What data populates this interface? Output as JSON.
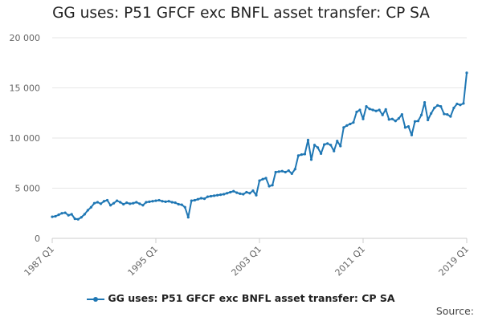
{
  "page": {
    "title": "GG uses: P51 GFCF exc BNFL asset transfer: CP SA",
    "source_label": "Source:"
  },
  "colors": {
    "series": "#1f77b4",
    "grid": "#e6e6e6",
    "axis": "#cccccc"
  },
  "chart_data": {
    "type": "line",
    "title": "GG uses: P51 GFCF exc BNFL asset transfer: CP SA",
    "xlabel": "",
    "ylabel": "",
    "ylim": [
      0,
      20000
    ],
    "y_ticks": [
      0,
      5000,
      10000,
      15000,
      20000
    ],
    "y_tick_labels": [
      "0",
      "5 000",
      "10 000",
      "15 000",
      "20 000"
    ],
    "x_tick_labels": [
      "1987 Q1",
      "1995 Q1",
      "2003 Q1",
      "2011 Q1",
      "2019 Q1"
    ],
    "x_tick_indices": [
      0,
      32,
      64,
      96,
      128
    ],
    "grid": true,
    "legend": "bottom-center",
    "series": [
      {
        "name": "GG uses: P51 GFCF exc BNFL asset transfer: CP SA",
        "quarters": [
          "1987 Q1",
          "1987 Q2",
          "1987 Q3",
          "1987 Q4",
          "1988 Q1",
          "1988 Q2",
          "1988 Q3",
          "1988 Q4",
          "1989 Q1",
          "1989 Q2",
          "1989 Q3",
          "1989 Q4",
          "1990 Q1",
          "1990 Q2",
          "1990 Q3",
          "1990 Q4",
          "1991 Q1",
          "1991 Q2",
          "1991 Q3",
          "1991 Q4",
          "1992 Q1",
          "1992 Q2",
          "1992 Q3",
          "1992 Q4",
          "1993 Q1",
          "1993 Q2",
          "1993 Q3",
          "1993 Q4",
          "1994 Q1",
          "1994 Q2",
          "1994 Q3",
          "1994 Q4",
          "1995 Q1",
          "1995 Q2",
          "1995 Q3",
          "1995 Q4",
          "1996 Q1",
          "1996 Q2",
          "1996 Q3",
          "1996 Q4",
          "1997 Q1",
          "1997 Q2",
          "1997 Q3",
          "1997 Q4",
          "1998 Q1",
          "1998 Q2",
          "1998 Q3",
          "1998 Q4",
          "1999 Q1",
          "1999 Q2",
          "1999 Q3",
          "1999 Q4",
          "2000 Q1",
          "2000 Q2",
          "2000 Q3",
          "2000 Q4",
          "2001 Q1",
          "2001 Q2",
          "2001 Q3",
          "2001 Q4",
          "2002 Q1",
          "2002 Q2",
          "2002 Q3",
          "2002 Q4",
          "2003 Q1",
          "2003 Q2",
          "2003 Q3",
          "2003 Q4",
          "2004 Q1",
          "2004 Q2",
          "2004 Q3",
          "2004 Q4",
          "2005 Q1",
          "2005 Q2",
          "2005 Q3",
          "2005 Q4",
          "2006 Q1",
          "2006 Q2",
          "2006 Q3",
          "2006 Q4",
          "2007 Q1",
          "2007 Q2",
          "2007 Q3",
          "2007 Q4",
          "2008 Q1",
          "2008 Q2",
          "2008 Q3",
          "2008 Q4",
          "2009 Q1",
          "2009 Q2",
          "2009 Q3",
          "2009 Q4",
          "2010 Q1",
          "2010 Q2",
          "2010 Q3",
          "2010 Q4",
          "2011 Q1",
          "2011 Q2",
          "2011 Q3",
          "2011 Q4",
          "2012 Q1",
          "2012 Q2",
          "2012 Q3",
          "2012 Q4",
          "2013 Q1",
          "2013 Q2",
          "2013 Q3",
          "2013 Q4",
          "2014 Q1",
          "2014 Q2",
          "2014 Q3",
          "2014 Q4",
          "2015 Q1",
          "2015 Q2",
          "2015 Q3",
          "2015 Q4",
          "2016 Q1",
          "2016 Q2",
          "2016 Q3",
          "2016 Q4",
          "2017 Q1",
          "2017 Q2",
          "2017 Q3",
          "2017 Q4",
          "2018 Q1",
          "2018 Q2",
          "2018 Q3",
          "2018 Q4",
          "2019 Q1"
        ],
        "values": [
          2150,
          2200,
          2350,
          2500,
          2550,
          2300,
          2400,
          1950,
          1900,
          2100,
          2400,
          2800,
          3100,
          3500,
          3600,
          3450,
          3700,
          3800,
          3300,
          3500,
          3750,
          3600,
          3400,
          3550,
          3450,
          3500,
          3600,
          3450,
          3300,
          3600,
          3650,
          3700,
          3750,
          3800,
          3700,
          3650,
          3700,
          3600,
          3550,
          3400,
          3350,
          3100,
          2100,
          3750,
          3800,
          3900,
          4000,
          3950,
          4150,
          4200,
          4250,
          4300,
          4350,
          4400,
          4500,
          4600,
          4700,
          4550,
          4450,
          4400,
          4600,
          4500,
          4750,
          4300,
          5750,
          5900,
          6000,
          5200,
          5300,
          6600,
          6650,
          6700,
          6600,
          6750,
          6450,
          6900,
          8250,
          8350,
          8400,
          9800,
          7850,
          9300,
          9050,
          8450,
          9350,
          9450,
          9300,
          8700,
          9700,
          9200,
          11050,
          11250,
          11400,
          11550,
          12600,
          12800,
          11900,
          13150,
          12900,
          12800,
          12700,
          12800,
          12300,
          12850,
          11850,
          11900,
          11700,
          11950,
          12350,
          11050,
          11150,
          10300,
          11650,
          11700,
          12300,
          13550,
          11800,
          12450,
          13000,
          13250,
          13150,
          12400,
          12350,
          12150,
          13000,
          13400,
          13300,
          13450,
          16500
        ]
      }
    ]
  }
}
